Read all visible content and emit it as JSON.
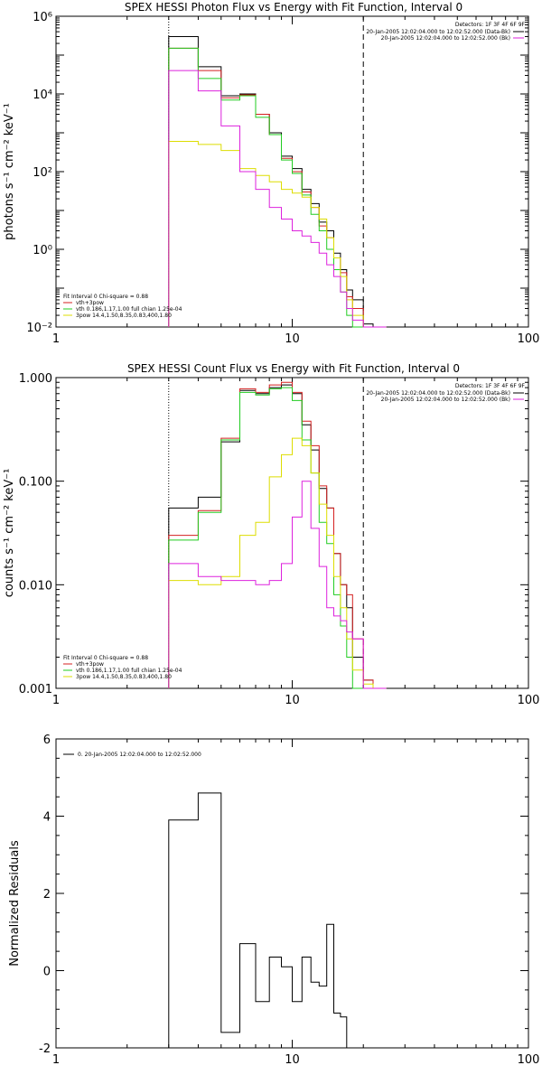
{
  "chart_data": [
    {
      "type": "line",
      "title": "SPEX HESSI Photon Flux vs Energy with Fit Function, Interval 0",
      "ylabel": "photons s⁻¹ cm⁻² keV⁻¹",
      "xlabel": "",
      "xscale": "log",
      "yscale": "log",
      "xlim": [
        1,
        100
      ],
      "ylim": [
        0.01,
        1000000
      ],
      "x_ticks": [
        "1",
        "10",
        "100"
      ],
      "y_ticks": [
        "10⁻²",
        "10⁰",
        "10²",
        "10⁴",
        "10⁶"
      ],
      "bin_edges": [
        3,
        4,
        5,
        6,
        7,
        8,
        9,
        10,
        11,
        12,
        13,
        14,
        15,
        16,
        17,
        18,
        20,
        22,
        25
      ],
      "vlines": [
        {
          "x": 3,
          "style": "dotted"
        },
        {
          "x": 20,
          "style": "dashed"
        }
      ],
      "series": [
        {
          "name": "data",
          "color": "#000000",
          "values": [
            300000,
            50000,
            9000,
            10000,
            3000,
            1000,
            250,
            120,
            35,
            15,
            5,
            3,
            0.8,
            0.3,
            0.09,
            0.05,
            0.012,
            0.01
          ]
        },
        {
          "name": "vth+3pow",
          "color": "#d42020",
          "values": [
            150000,
            40000,
            8000,
            9500,
            3000,
            900,
            220,
            100,
            30,
            12,
            4,
            2,
            0.6,
            0.25,
            0.06,
            0.03,
            0.01,
            0.01
          ]
        },
        {
          "name": "vth 0.186,1.17,1.00 full chian 1.25e-04",
          "color": "#22cc22",
          "values": [
            150000,
            25000,
            7000,
            9000,
            2500,
            900,
            200,
            90,
            25,
            8,
            3,
            1,
            0.3,
            0.08,
            0.02,
            0.01,
            0.01,
            0.01
          ]
        },
        {
          "name": "3pow 14.4,1.50,8.35,0.83,400,1.80",
          "color": "#dddd00",
          "values": [
            600,
            500,
            350,
            120,
            80,
            55,
            35,
            28,
            22,
            12,
            6,
            2,
            0.6,
            0.2,
            0.05,
            0.02,
            0.01,
            0.01
          ]
        },
        {
          "name": "background",
          "color": "#dd22dd",
          "values": [
            40000,
            12000,
            1500,
            100,
            35,
            12,
            6,
            3,
            2.2,
            1.5,
            0.8,
            0.4,
            0.2,
            0.08,
            0.03,
            0.015,
            0.01,
            0.01
          ]
        }
      ],
      "legend_top_right": {
        "detectors": "Detectors: 1F 3F 4F 6F 9F",
        "entries": [
          {
            "text": "20-Jan-2005 12:02:04.000 to 12:02:52.000 (Data-Bk)",
            "color": "#000000"
          },
          {
            "text": "20-Jan-2005 12:02:04.000 to 12:02:52.000 (Bk)",
            "color": "#dd22dd"
          }
        ]
      },
      "legend_bottom_left": {
        "header": "Fit Interval 0   Chi-square = 0.88",
        "entries": [
          {
            "text": "vth+3pow",
            "color": "#d42020"
          },
          {
            "text": "vth 0.186,1.17,1.00  full chian 1.25e-04",
            "color": "#22cc22"
          },
          {
            "text": "3pow 14.4,1.50,8.35,0.83,400,1.80",
            "color": "#dddd00"
          }
        ]
      }
    },
    {
      "type": "line",
      "title": "SPEX HESSI Count Flux vs Energy with Fit Function, Interval 0",
      "ylabel": "counts s⁻¹ cm⁻² keV⁻¹",
      "xlabel": "",
      "xscale": "log",
      "yscale": "log",
      "xlim": [
        1,
        100
      ],
      "ylim": [
        0.001,
        1.0
      ],
      "x_ticks": [
        "1",
        "10",
        "100"
      ],
      "y_ticks": [
        "0.001",
        "0.010",
        "0.100",
        "1.000"
      ],
      "bin_edges": [
        3,
        4,
        5,
        6,
        7,
        8,
        9,
        10,
        11,
        12,
        13,
        14,
        15,
        16,
        17,
        18,
        20,
        22,
        25
      ],
      "vlines": [
        {
          "x": 3,
          "style": "dotted"
        },
        {
          "x": 20,
          "style": "dashed"
        }
      ],
      "series": [
        {
          "name": "data",
          "color": "#000000",
          "values": [
            0.055,
            0.07,
            0.24,
            0.75,
            0.7,
            0.8,
            0.85,
            0.7,
            0.35,
            0.2,
            0.085,
            0.055,
            0.02,
            0.01,
            0.006,
            0.002,
            0.0012,
            0.001
          ]
        },
        {
          "name": "vth+3pow",
          "color": "#d42020",
          "values": [
            0.03,
            0.052,
            0.26,
            0.78,
            0.72,
            0.85,
            0.9,
            0.72,
            0.38,
            0.22,
            0.09,
            0.055,
            0.02,
            0.01,
            0.008,
            0.003,
            0.0012,
            0.001
          ]
        },
        {
          "name": "vth 0.186,1.17,1.00 full chian 1.25e-04",
          "color": "#22cc22",
          "values": [
            0.027,
            0.05,
            0.25,
            0.72,
            0.68,
            0.78,
            0.8,
            0.6,
            0.25,
            0.12,
            0.04,
            0.025,
            0.008,
            0.004,
            0.002,
            0.001,
            0.001,
            0.001
          ]
        },
        {
          "name": "3pow 14.4,1.50,8.35,0.83,400,1.80",
          "color": "#dddd00",
          "values": [
            0.011,
            0.01,
            0.012,
            0.03,
            0.04,
            0.11,
            0.18,
            0.26,
            0.22,
            0.12,
            0.06,
            0.03,
            0.012,
            0.006,
            0.003,
            0.0015,
            0.0011,
            0.001
          ]
        },
        {
          "name": "background",
          "color": "#dd22dd",
          "values": [
            0.016,
            0.012,
            0.011,
            0.011,
            0.01,
            0.011,
            0.016,
            0.045,
            0.1,
            0.035,
            0.015,
            0.006,
            0.005,
            0.0045,
            0.0035,
            0.003,
            0.001,
            0.001
          ]
        }
      ],
      "legend_top_right": {
        "detectors": "Detectors: 1F 3F 4F 6F 9F",
        "entries": [
          {
            "text": "20-Jan-2005 12:02:04.000 to 12:02:52.000 (Data-Bk)",
            "color": "#000000"
          },
          {
            "text": "20-Jan-2005 12:02:04.000 to 12:02:52.000 (Bk)",
            "color": "#dd22dd"
          }
        ]
      },
      "legend_bottom_left": {
        "header": "Fit Interval 0   Chi-square = 0.88",
        "entries": [
          {
            "text": "vth+3pow",
            "color": "#d42020"
          },
          {
            "text": "vth 0.186,1.17,1.00  full chian 1.25e-04",
            "color": "#22cc22"
          },
          {
            "text": "3pow 14.4,1.50,8.35,0.83,400,1.80",
            "color": "#dddd00"
          }
        ]
      }
    },
    {
      "type": "line",
      "title": "",
      "ylabel": "Normalized Residuals",
      "xlabel": "",
      "xscale": "log",
      "yscale": "linear",
      "xlim": [
        1,
        100
      ],
      "ylim": [
        -2,
        6
      ],
      "x_ticks": [
        "1",
        "10",
        "100"
      ],
      "y_ticks": [
        "-2",
        "0",
        "2",
        "4",
        "6"
      ],
      "bin_edges": [
        3,
        4,
        5,
        6,
        7,
        8,
        9,
        10,
        11,
        12,
        13,
        14,
        15,
        16,
        17,
        18,
        20
      ],
      "series": [
        {
          "name": "0. 20-Jan-2005 12:02:04.000 to 12:02:52.000",
          "color": "#000000",
          "values": [
            3.9,
            4.6,
            -1.6,
            0.7,
            -0.8,
            0.35,
            0.1,
            -0.8,
            0.35,
            -0.3,
            -0.4,
            1.2,
            -1.1,
            -1.2,
            -2.0,
            -2.0
          ]
        }
      ],
      "legend_top_left": {
        "entries": [
          {
            "text": "0. 20-Jan-2005 12:02:04.000 to 12:02:52.000",
            "color": "#000000"
          }
        ]
      }
    }
  ]
}
